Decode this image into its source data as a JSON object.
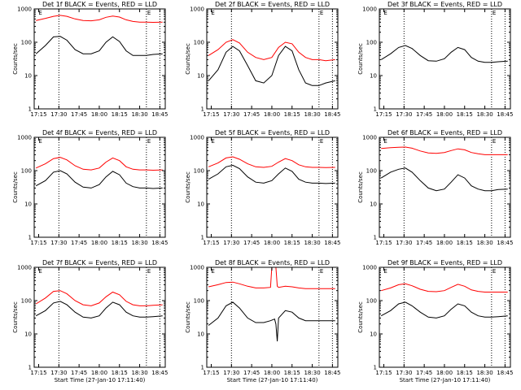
{
  "chart_data": [
    {
      "type": "line",
      "title": "Det 1f BLACK = Events, RED = LLD",
      "xlabel": "",
      "ylabel": "Counts/sec",
      "x_ticks": [
        "17:15",
        "17:30",
        "17:45",
        "18:00",
        "18:15",
        "18:30",
        "18:45"
      ],
      "y_ticks": [
        "1",
        "10",
        "100",
        "1000"
      ],
      "yscale": "log",
      "ylim": [
        1,
        1000
      ],
      "vlines": [
        "17:30",
        "18:35",
        "18:45"
      ],
      "event_markers": [
        "E",
        "E"
      ],
      "series": [
        {
          "name": "Events",
          "color": "#000000",
          "x": [
            "17:13",
            "17:20",
            "17:26",
            "17:31",
            "17:36",
            "17:42",
            "17:48",
            "17:54",
            "18:00",
            "18:05",
            "18:10",
            "18:15",
            "18:20",
            "18:25",
            "18:30",
            "18:35",
            "18:40",
            "18:47"
          ],
          "values": [
            45,
            80,
            145,
            150,
            115,
            60,
            45,
            45,
            55,
            100,
            145,
            105,
            55,
            40,
            40,
            40,
            43,
            45
          ]
        },
        {
          "name": "LLD",
          "color": "#ff0000",
          "x": [
            "17:13",
            "17:20",
            "17:26",
            "17:31",
            "17:36",
            "17:42",
            "17:48",
            "17:54",
            "18:00",
            "18:05",
            "18:10",
            "18:15",
            "18:20",
            "18:25",
            "18:30",
            "18:35",
            "18:40",
            "18:47"
          ],
          "values": [
            450,
            520,
            600,
            640,
            600,
            500,
            450,
            440,
            470,
            560,
            610,
            570,
            470,
            420,
            400,
            400,
            395,
            400
          ]
        }
      ]
    },
    {
      "type": "line",
      "title": "Det 2f BLACK = Events, RED = LLD",
      "xlabel": "",
      "ylabel": "Counts/sec",
      "x_ticks": [
        "17:15",
        "17:30",
        "17:45",
        "18:00",
        "18:15",
        "18:30",
        "18:45"
      ],
      "y_ticks": [
        "1",
        "10",
        "100",
        "1000"
      ],
      "yscale": "log",
      "ylim": [
        1,
        1000
      ],
      "vlines": [
        "17:30",
        "18:35",
        "18:45"
      ],
      "event_markers": [
        "E",
        "E"
      ],
      "series": [
        {
          "name": "Events",
          "color": "#000000",
          "x": [
            "17:13",
            "17:20",
            "17:26",
            "17:31",
            "17:36",
            "17:42",
            "17:48",
            "17:54",
            "18:00",
            "18:05",
            "18:10",
            "18:15",
            "18:20",
            "18:25",
            "18:30",
            "18:35",
            "18:40",
            "18:47"
          ],
          "values": [
            7,
            15,
            50,
            75,
            55,
            20,
            7,
            6,
            10,
            40,
            75,
            55,
            15,
            6,
            5,
            5,
            6,
            7
          ]
        },
        {
          "name": "LLD",
          "color": "#ff0000",
          "x": [
            "17:13",
            "17:20",
            "17:26",
            "17:31",
            "17:36",
            "17:42",
            "17:48",
            "17:54",
            "18:00",
            "18:05",
            "18:10",
            "18:15",
            "18:20",
            "18:25",
            "18:30",
            "18:35",
            "18:40",
            "18:47"
          ],
          "values": [
            40,
            60,
            100,
            120,
            95,
            50,
            35,
            30,
            35,
            70,
            100,
            90,
            50,
            35,
            30,
            30,
            28,
            30
          ]
        }
      ]
    },
    {
      "type": "line",
      "title": "Det 3f BLACK = Events, RED = LLD",
      "xlabel": "",
      "ylabel": "Counts/sec",
      "x_ticks": [
        "17:15",
        "17:30",
        "17:45",
        "18:00",
        "18:15",
        "18:30",
        "18:45"
      ],
      "y_ticks": [
        "1",
        "10",
        "100",
        "1000"
      ],
      "yscale": "log",
      "ylim": [
        1,
        1000
      ],
      "vlines": [
        "17:30",
        "18:35",
        "18:45"
      ],
      "event_markers": [
        "E",
        "E"
      ],
      "series": [
        {
          "name": "Events",
          "color": "#000000",
          "x": [
            "17:13",
            "17:20",
            "17:26",
            "17:31",
            "17:36",
            "17:42",
            "17:48",
            "17:54",
            "18:00",
            "18:05",
            "18:10",
            "18:15",
            "18:20",
            "18:25",
            "18:30",
            "18:35",
            "18:40",
            "18:47"
          ],
          "values": [
            30,
            45,
            70,
            80,
            65,
            40,
            28,
            27,
            32,
            50,
            70,
            60,
            35,
            27,
            25,
            25,
            26,
            27
          ]
        }
      ]
    },
    {
      "type": "line",
      "title": "Det 4f BLACK = Events, RED = LLD",
      "xlabel": "",
      "ylabel": "Counts/sec",
      "x_ticks": [
        "17:15",
        "17:30",
        "17:45",
        "18:00",
        "18:15",
        "18:30",
        "18:45"
      ],
      "y_ticks": [
        "1",
        "10",
        "100",
        "1000"
      ],
      "yscale": "log",
      "ylim": [
        1,
        1000
      ],
      "vlines": [
        "17:30",
        "18:35",
        "18:45"
      ],
      "event_markers": [
        "E",
        "E"
      ],
      "series": [
        {
          "name": "Events",
          "color": "#000000",
          "x": [
            "17:13",
            "17:20",
            "17:26",
            "17:31",
            "17:36",
            "17:42",
            "17:48",
            "17:54",
            "18:00",
            "18:05",
            "18:10",
            "18:15",
            "18:20",
            "18:25",
            "18:30",
            "18:35",
            "18:40",
            "18:47"
          ],
          "values": [
            35,
            50,
            90,
            100,
            80,
            45,
            32,
            30,
            38,
            65,
            95,
            75,
            42,
            33,
            30,
            30,
            29,
            30
          ]
        },
        {
          "name": "LLD",
          "color": "#ff0000",
          "x": [
            "17:13",
            "17:20",
            "17:26",
            "17:31",
            "17:36",
            "17:42",
            "17:48",
            "17:54",
            "18:00",
            "18:05",
            "18:10",
            "18:15",
            "18:20",
            "18:25",
            "18:30",
            "18:35",
            "18:40",
            "18:47"
          ],
          "values": [
            120,
            160,
            230,
            250,
            210,
            140,
            110,
            105,
            120,
            180,
            240,
            200,
            130,
            110,
            105,
            105,
            103,
            105
          ]
        }
      ]
    },
    {
      "type": "line",
      "title": "Det 5f BLACK = Events, RED = LLD",
      "xlabel": "",
      "ylabel": "Counts/sec",
      "x_ticks": [
        "17:15",
        "17:30",
        "17:45",
        "18:00",
        "18:15",
        "18:30",
        "18:45"
      ],
      "y_ticks": [
        "1",
        "10",
        "100",
        "1000"
      ],
      "yscale": "log",
      "ylim": [
        1,
        1000
      ],
      "vlines": [
        "17:30",
        "18:35",
        "18:45"
      ],
      "event_markers": [
        "E",
        "E"
      ],
      "series": [
        {
          "name": "Events",
          "color": "#000000",
          "x": [
            "17:13",
            "17:20",
            "17:26",
            "17:31",
            "17:36",
            "17:42",
            "17:48",
            "17:54",
            "18:00",
            "18:05",
            "18:10",
            "18:15",
            "18:20",
            "18:25",
            "18:30",
            "18:35",
            "18:40",
            "18:47"
          ],
          "values": [
            55,
            80,
            130,
            145,
            115,
            65,
            45,
            42,
            50,
            80,
            120,
            95,
            55,
            45,
            42,
            42,
            41,
            42
          ]
        },
        {
          "name": "LLD",
          "color": "#ff0000",
          "x": [
            "17:13",
            "17:20",
            "17:26",
            "17:31",
            "17:36",
            "17:42",
            "17:48",
            "17:54",
            "18:00",
            "18:05",
            "18:10",
            "18:15",
            "18:20",
            "18:25",
            "18:30",
            "18:35",
            "18:40",
            "18:47"
          ],
          "values": [
            130,
            170,
            240,
            260,
            220,
            160,
            130,
            125,
            135,
            180,
            230,
            200,
            150,
            130,
            125,
            125,
            123,
            125
          ]
        }
      ]
    },
    {
      "type": "line",
      "title": "Det 6f BLACK = Events, RED = LLD",
      "xlabel": "",
      "ylabel": "Counts/sec",
      "x_ticks": [
        "17:15",
        "17:30",
        "17:45",
        "18:00",
        "18:15",
        "18:30",
        "18:45"
      ],
      "y_ticks": [
        "1",
        "10",
        "100",
        "1000"
      ],
      "yscale": "log",
      "ylim": [
        1,
        1000
      ],
      "vlines": [
        "17:30",
        "18:35",
        "18:45"
      ],
      "event_markers": [
        "E",
        "E"
      ],
      "series": [
        {
          "name": "Events",
          "color": "#000000",
          "x": [
            "17:13",
            "17:20",
            "17:26",
            "17:31",
            "17:36",
            "17:42",
            "17:48",
            "17:54",
            "18:00",
            "18:05",
            "18:10",
            "18:15",
            "18:20",
            "18:25",
            "18:30",
            "18:35",
            "18:40",
            "18:47"
          ],
          "values": [
            60,
            90,
            110,
            120,
            90,
            50,
            30,
            25,
            28,
            45,
            75,
            60,
            35,
            28,
            25,
            25,
            27,
            28
          ]
        },
        {
          "name": "LLD",
          "color": "#ff0000",
          "x": [
            "17:13",
            "17:20",
            "17:26",
            "17:31",
            "17:36",
            "17:42",
            "17:48",
            "17:54",
            "18:00",
            "18:05",
            "18:10",
            "18:15",
            "18:20",
            "18:25",
            "18:30",
            "18:35",
            "18:40",
            "18:47"
          ],
          "values": [
            460,
            490,
            500,
            510,
            470,
            390,
            340,
            330,
            350,
            400,
            450,
            420,
            350,
            320,
            300,
            300,
            300,
            300
          ]
        }
      ]
    },
    {
      "type": "line",
      "title": "Det 7f BLACK = Events, RED = LLD",
      "xlabel": "Start Time (27-Jan-10 17:11:40)",
      "ylabel": "Counts/sec",
      "x_ticks": [
        "17:15",
        "17:30",
        "17:45",
        "18:00",
        "18:15",
        "18:30",
        "18:45"
      ],
      "y_ticks": [
        "1",
        "10",
        "100",
        "1000"
      ],
      "yscale": "log",
      "ylim": [
        1,
        1000
      ],
      "vlines": [
        "17:30",
        "18:35",
        "18:45"
      ],
      "event_markers": [
        "E",
        "E"
      ],
      "series": [
        {
          "name": "Events",
          "color": "#000000",
          "x": [
            "17:13",
            "17:20",
            "17:26",
            "17:31",
            "17:36",
            "17:42",
            "17:48",
            "17:54",
            "18:00",
            "18:05",
            "18:10",
            "18:15",
            "18:20",
            "18:25",
            "18:30",
            "18:35",
            "18:40",
            "18:47"
          ],
          "values": [
            35,
            50,
            85,
            95,
            75,
            45,
            32,
            30,
            35,
            60,
            90,
            75,
            45,
            35,
            32,
            32,
            33,
            35
          ]
        },
        {
          "name": "LLD",
          "color": "#ff0000",
          "x": [
            "17:13",
            "17:20",
            "17:26",
            "17:31",
            "17:36",
            "17:42",
            "17:48",
            "17:54",
            "18:00",
            "18:05",
            "18:10",
            "18:15",
            "18:20",
            "18:25",
            "18:30",
            "18:35",
            "18:40",
            "18:47"
          ],
          "values": [
            80,
            120,
            190,
            200,
            160,
            100,
            75,
            70,
            85,
            130,
            180,
            150,
            95,
            75,
            70,
            70,
            72,
            75
          ]
        }
      ]
    },
    {
      "type": "line",
      "title": "Det 8f BLACK = Events, RED = LLD",
      "xlabel": "Start Time (27-Jan-10 17:11:40)",
      "ylabel": "Counts/sec",
      "x_ticks": [
        "17:15",
        "17:30",
        "17:45",
        "18:00",
        "18:15",
        "18:30",
        "18:45"
      ],
      "y_ticks": [
        "1",
        "10",
        "100",
        "1000"
      ],
      "yscale": "log",
      "ylim": [
        1,
        1000
      ],
      "vlines": [
        "17:30",
        "18:35",
        "18:45"
      ],
      "event_markers": [
        "E",
        "E"
      ],
      "series": [
        {
          "name": "Events",
          "color": "#000000",
          "x": [
            "17:13",
            "17:20",
            "17:26",
            "17:31",
            "17:36",
            "17:42",
            "17:48",
            "17:54",
            "17:59",
            "18:02",
            "18:03",
            "18:04",
            "18:05",
            "18:10",
            "18:15",
            "18:20",
            "18:25",
            "18:30",
            "18:35",
            "18:40",
            "18:47"
          ],
          "values": [
            18,
            30,
            70,
            90,
            60,
            30,
            22,
            22,
            25,
            28,
            20,
            6,
            30,
            50,
            45,
            30,
            25,
            25,
            25,
            25,
            25
          ]
        },
        {
          "name": "LLD",
          "color": "#ff0000",
          "x": [
            "17:13",
            "17:20",
            "17:26",
            "17:31",
            "17:36",
            "17:42",
            "17:48",
            "17:54",
            "17:59",
            "18:00",
            "18:01",
            "18:03",
            "18:04",
            "18:05",
            "18:10",
            "18:15",
            "18:20",
            "18:25",
            "18:30",
            "18:35",
            "18:40",
            "18:47"
          ],
          "values": [
            260,
            300,
            350,
            360,
            320,
            270,
            240,
            240,
            250,
            1000,
            1000,
            1000,
            270,
            250,
            270,
            260,
            240,
            230,
            230,
            230,
            230,
            230
          ]
        }
      ]
    },
    {
      "type": "line",
      "title": "Det 9f BLACK = Events, RED = LLD",
      "xlabel": "Start Time (27-Jan-10 17:11:40)",
      "ylabel": "Counts/sec",
      "x_ticks": [
        "17:15",
        "17:30",
        "17:45",
        "18:00",
        "18:15",
        "18:30",
        "18:45"
      ],
      "y_ticks": [
        "1",
        "10",
        "100",
        "1000"
      ],
      "yscale": "log",
      "ylim": [
        1,
        1000
      ],
      "vlines": [
        "17:30",
        "18:35",
        "18:45"
      ],
      "event_markers": [
        "E",
        "E"
      ],
      "series": [
        {
          "name": "Events",
          "color": "#000000",
          "x": [
            "17:13",
            "17:20",
            "17:26",
            "17:31",
            "17:36",
            "17:42",
            "17:48",
            "17:54",
            "18:00",
            "18:05",
            "18:10",
            "18:15",
            "18:20",
            "18:25",
            "18:30",
            "18:35",
            "18:40",
            "18:47"
          ],
          "values": [
            35,
            50,
            80,
            90,
            70,
            45,
            32,
            30,
            35,
            55,
            80,
            70,
            45,
            35,
            32,
            32,
            33,
            35
          ]
        },
        {
          "name": "LLD",
          "color": "#ff0000",
          "x": [
            "17:13",
            "17:20",
            "17:26",
            "17:31",
            "17:36",
            "17:42",
            "17:48",
            "17:54",
            "18:00",
            "18:05",
            "18:10",
            "18:15",
            "18:20",
            "18:25",
            "18:30",
            "18:35",
            "18:40",
            "18:47"
          ],
          "values": [
            200,
            240,
            300,
            320,
            280,
            220,
            190,
            185,
            200,
            250,
            310,
            270,
            210,
            190,
            180,
            180,
            180,
            180
          ]
        }
      ]
    }
  ]
}
